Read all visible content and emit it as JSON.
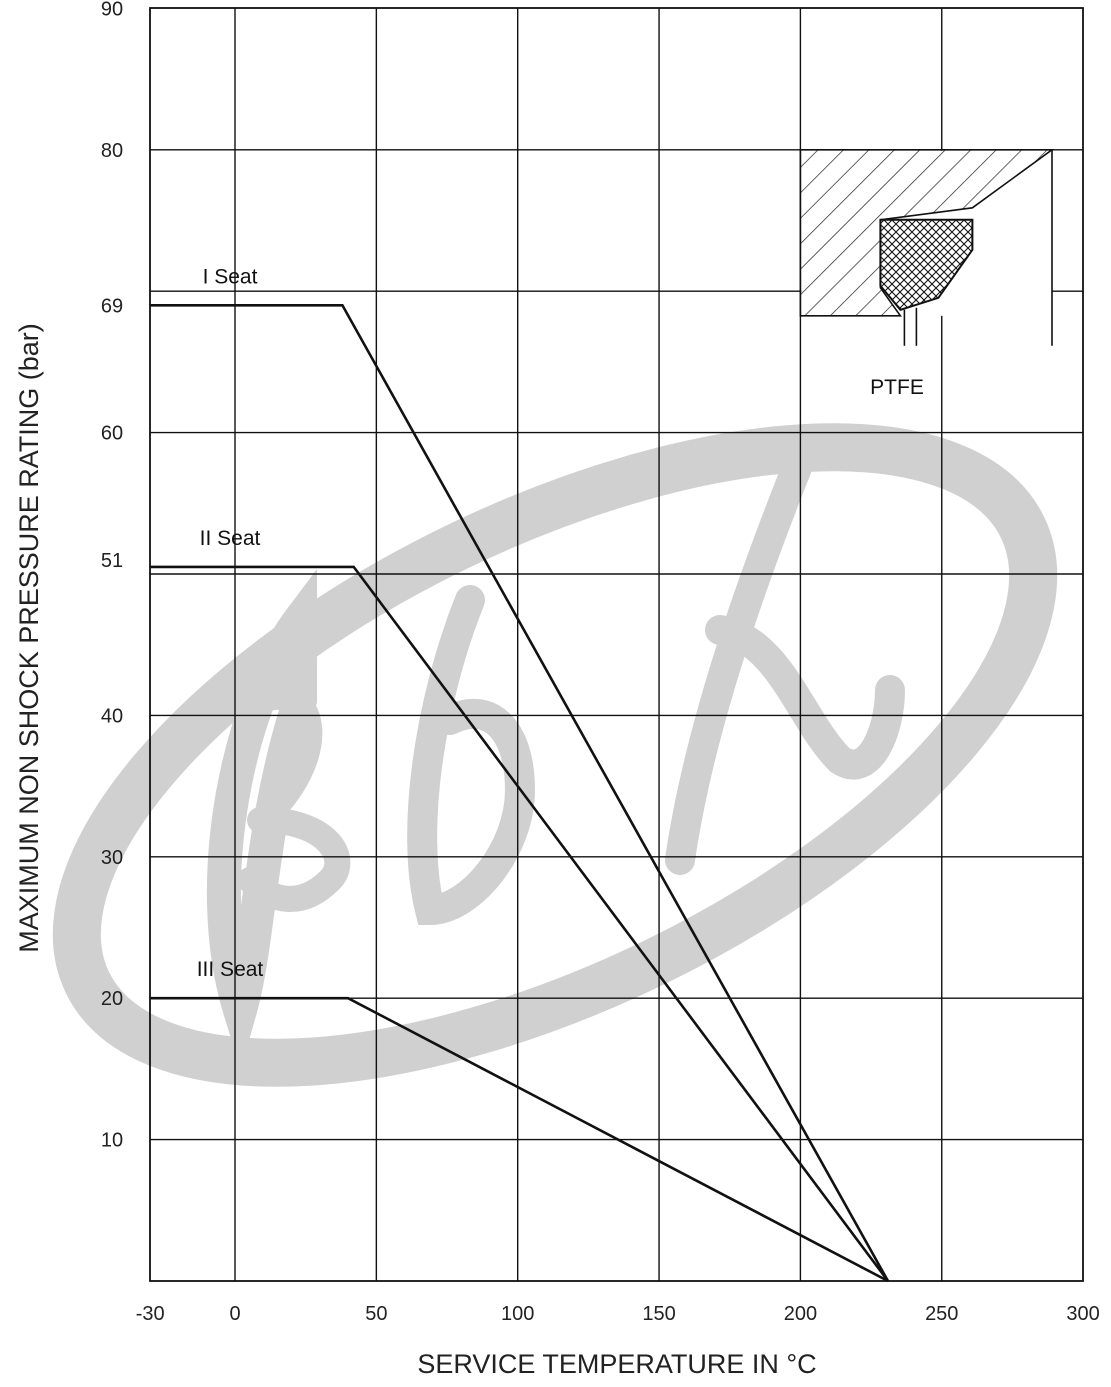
{
  "chart_data": {
    "type": "line",
    "xlabel": "SERVICE  TEMPERATURE  IN  °C",
    "ylabel": "MAXIMUM  NON  SHOCK  PRESSURE  RATING  (bar)",
    "xlim": [
      -30,
      300
    ],
    "ylim": [
      0,
      90
    ],
    "x_ticks": [
      -30,
      0,
      50,
      100,
      150,
      200,
      250,
      300
    ],
    "y_ticks": [
      10,
      20,
      30,
      40,
      51,
      60,
      69,
      80,
      90
    ],
    "grid": true,
    "series": [
      {
        "name": "I Seat",
        "points": [
          [
            -30,
            69
          ],
          [
            38,
            69
          ],
          [
            231,
            0
          ]
        ]
      },
      {
        "name": "II Seat",
        "points": [
          [
            -30,
            50.5
          ],
          [
            42,
            50.5
          ],
          [
            231,
            0
          ]
        ]
      },
      {
        "name": "III Seat",
        "points": [
          [
            -30,
            20
          ],
          [
            40,
            20
          ],
          [
            231,
            0
          ]
        ]
      }
    ],
    "annotations": [
      {
        "text": "PTFE"
      }
    ],
    "watermark": {
      "text": "BDK"
    }
  }
}
